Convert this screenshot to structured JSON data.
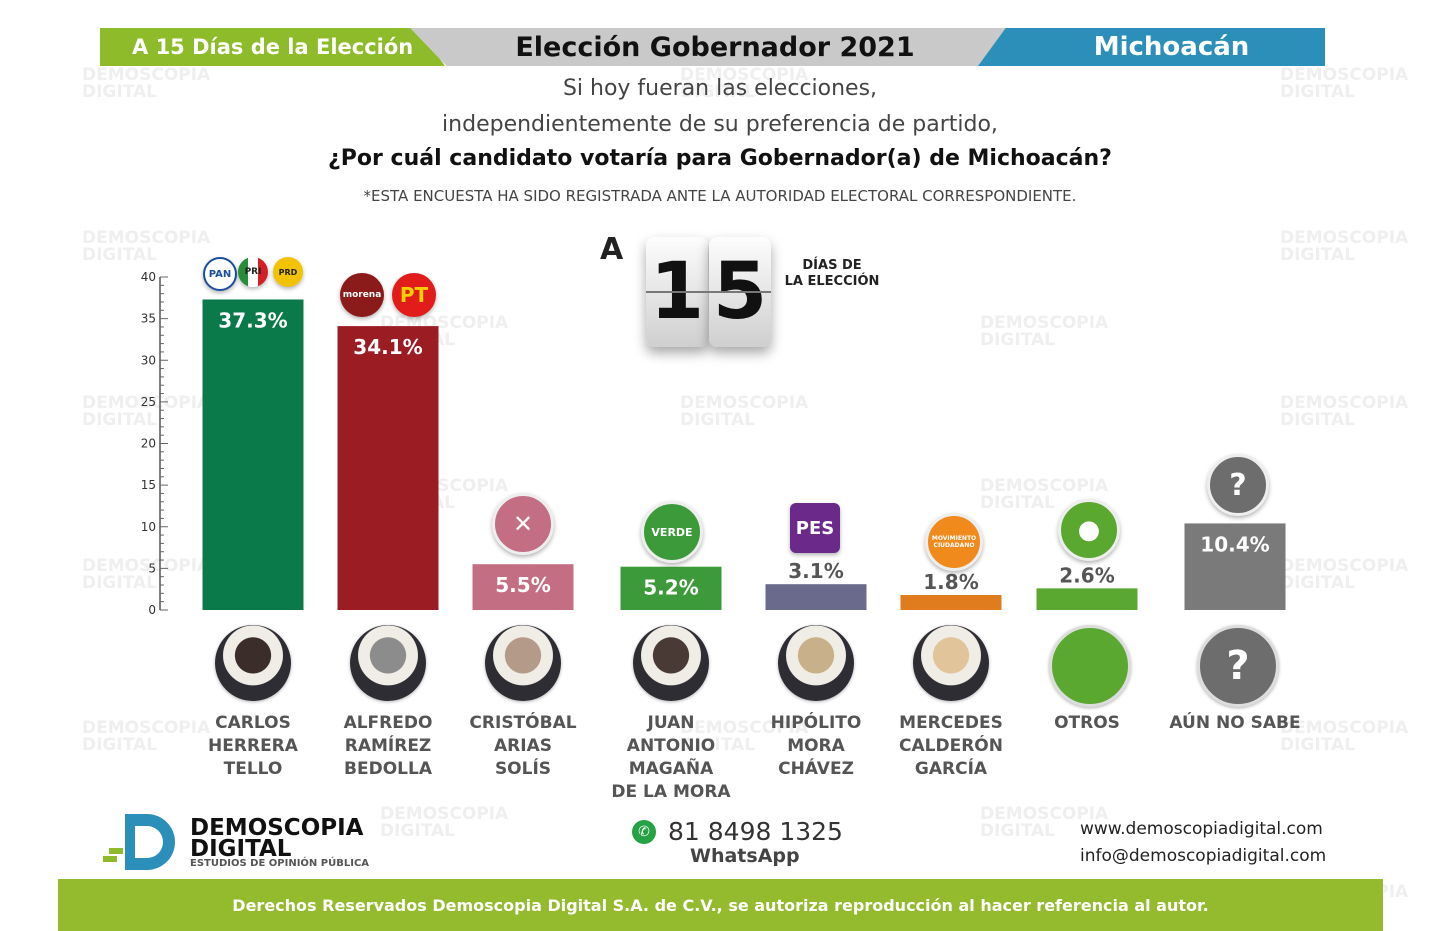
{
  "header": {
    "left": "A 15 Días de la Elección",
    "center": "Elección Gobernador 2021",
    "right": "Michoacán"
  },
  "question": {
    "line1": "Si hoy fueran las elecciones,",
    "line2": "independientemente de su preferencia de partido,",
    "line3": "¿Por cuál candidato votaría para Gobernador(a) de Michoacán?",
    "note": "*ESTA ENCUESTA HA SIDO REGISTRADA ANTE LA AUTORIDAD ELECTORAL CORRESPONDIENTE."
  },
  "counter": {
    "prefix": "A",
    "digit1": "1",
    "digit2": "5",
    "label1": "DÍAS DE",
    "label2": "LA ELECCIÓN"
  },
  "chart_data": {
    "type": "bar",
    "ylim": [
      0,
      40
    ],
    "yticks": [
      "0",
      "5",
      "10",
      "15",
      "20",
      "25",
      "30",
      "35",
      "40"
    ],
    "categories": [
      "CARLOS HERRERA TELLO",
      "ALFREDO RAMÍREZ BEDOLLA",
      "CRISTÓBAL ARIAS SOLÍS",
      "JUAN ANTONIO MAGAÑA DE LA MORA",
      "HIPÓLITO MORA CHÁVEZ",
      "MERCEDES CALDERÓN GARCÍA",
      "OTROS",
      "AÚN NO SABE"
    ],
    "values": [
      37.3,
      34.1,
      5.5,
      5.2,
      3.1,
      1.8,
      2.6,
      10.4
    ],
    "labels": [
      "37.3%",
      "34.1%",
      "5.5%",
      "5.2%",
      "3.1%",
      "1.8%",
      "2.6%",
      "10.4%"
    ],
    "colors": [
      "#0b7a4a",
      "#9b1c22",
      "#c46e84",
      "#3d9a3a",
      "#6a6a8c",
      "#e07b1e",
      "#5aa830",
      "#7a7a7a"
    ]
  },
  "candidates": [
    {
      "l1": "CARLOS",
      "l2": "HERRERA",
      "l3": "TELLO",
      "l4": ""
    },
    {
      "l1": "ALFREDO",
      "l2": "RAMÍREZ",
      "l3": "BEDOLLA",
      "l4": ""
    },
    {
      "l1": "CRISTÓBAL",
      "l2": "ARIAS",
      "l3": "SOLÍS",
      "l4": ""
    },
    {
      "l1": "JUAN",
      "l2": "ANTONIO",
      "l3": "MAGAÑA",
      "l4": "DE LA MORA"
    },
    {
      "l1": "HIPÓLITO",
      "l2": "MORA",
      "l3": "CHÁVEZ",
      "l4": ""
    },
    {
      "l1": "MERCEDES",
      "l2": "CALDERÓN",
      "l3": "GARCÍA",
      "l4": ""
    },
    {
      "l1": "OTROS",
      "l2": "",
      "l3": "",
      "l4": ""
    },
    {
      "l1": "AÚN NO SABE",
      "l2": "",
      "l3": "",
      "l4": ""
    }
  ],
  "party_logos": {
    "pan": "PAN",
    "pri": "PRI",
    "prd": "PRD",
    "morena": "morena",
    "pt": "PT",
    "pes": "PES",
    "verde": "VERDE",
    "mc": "MOVIMIENTO CIUDADANO",
    "question": "?"
  },
  "footer": {
    "brand_line1": "DEMOSCOPIA",
    "brand_line2": "DIGITAL",
    "brand_line3": "ESTUDIOS DE OPINIÓN PÚBLICA",
    "phone": "81 8498 1325",
    "whatsapp": "WhatsApp",
    "web": "www.demoscopiadigital.com",
    "email": "info@demoscopiadigital.com",
    "rights": "Derechos Reservados Demoscopia Digital S.A. de C.V., se autoriza reproducción al hacer referencia al autor."
  },
  "watermark": {
    "line1": "DEMOSCOPIA",
    "line2": "DIGITAL"
  }
}
